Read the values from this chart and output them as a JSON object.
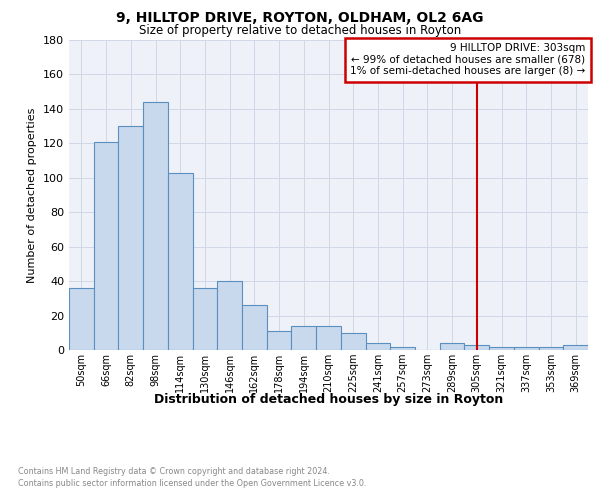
{
  "title": "9, HILLTOP DRIVE, ROYTON, OLDHAM, OL2 6AG",
  "subtitle": "Size of property relative to detached houses in Royton",
  "xlabel": "Distribution of detached houses by size in Royton",
  "ylabel": "Number of detached properties",
  "categories": [
    "50sqm",
    "66sqm",
    "82sqm",
    "98sqm",
    "114sqm",
    "130sqm",
    "146sqm",
    "162sqm",
    "178sqm",
    "194sqm",
    "210sqm",
    "225sqm",
    "241sqm",
    "257sqm",
    "273sqm",
    "289sqm",
    "305sqm",
    "321sqm",
    "337sqm",
    "353sqm",
    "369sqm"
  ],
  "values": [
    36,
    121,
    130,
    144,
    103,
    36,
    40,
    26,
    11,
    14,
    14,
    10,
    4,
    2,
    0,
    4,
    3,
    2,
    2,
    2,
    3
  ],
  "bar_color": "#c8d9ed",
  "bar_edge_color": "#5b8fc0",
  "grid_color": "#d0d8e8",
  "vline_x": 16,
  "vline_color": "#cc0000",
  "annotation_box_color": "#cc0000",
  "annotation_lines": [
    "9 HILLTOP DRIVE: 303sqm",
    "← 99% of detached houses are smaller (678)",
    "1% of semi-detached houses are larger (8) →"
  ],
  "footnote1": "Contains HM Land Registry data © Crown copyright and database right 2024.",
  "footnote2": "Contains public sector information licensed under the Open Government Licence v3.0.",
  "ylim": [
    0,
    180
  ],
  "yticks": [
    0,
    20,
    40,
    60,
    80,
    100,
    120,
    140,
    160,
    180
  ],
  "background_color": "#eef2f8"
}
